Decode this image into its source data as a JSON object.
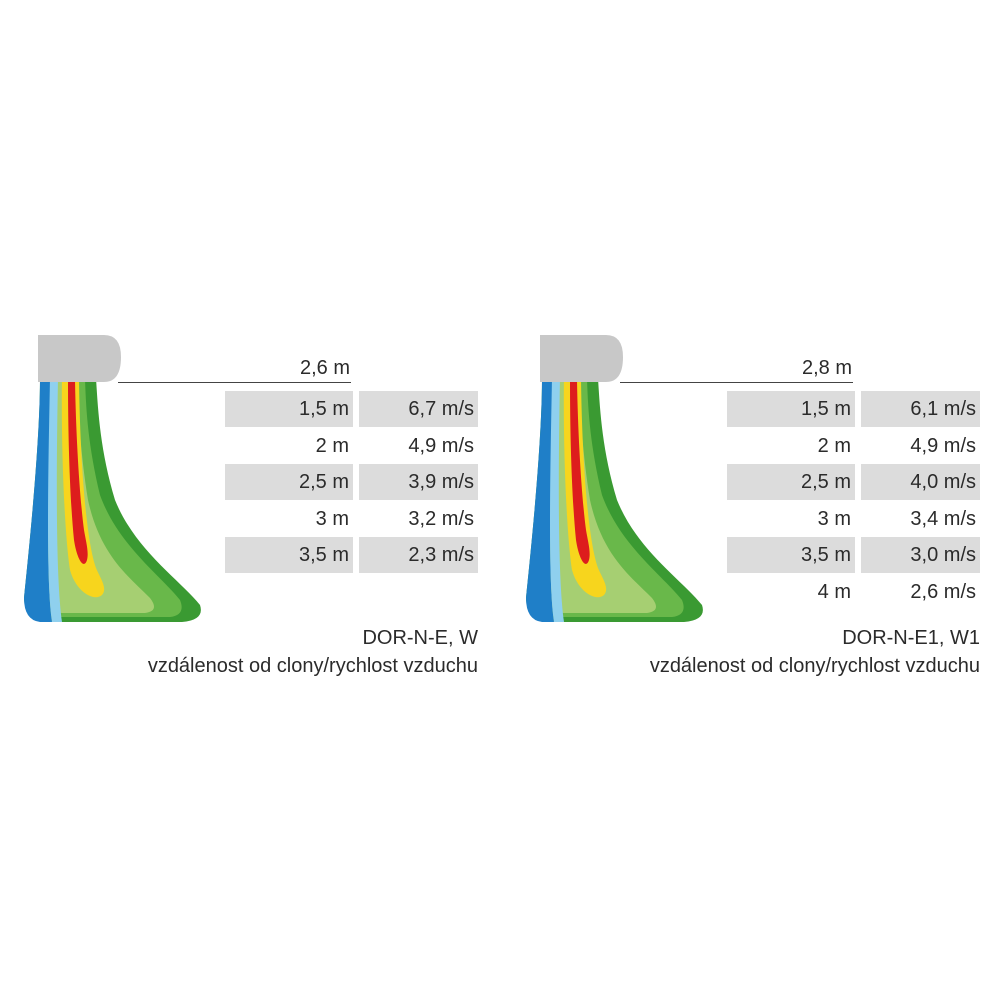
{
  "panels": [
    {
      "model": "DOR-N-E, W",
      "description": "vzdálenost od clony/rychlost vzduchu",
      "height_label": "2,6 m",
      "rows": [
        {
          "distance": "1,5 m",
          "speed": "6,7 m/s"
        },
        {
          "distance": "2 m",
          "speed": "4,9 m/s"
        },
        {
          "distance": "2,5 m",
          "speed": "3,9 m/s"
        },
        {
          "distance": "3 m",
          "speed": "3,2 m/s"
        },
        {
          "distance": "3,5 m",
          "speed": "2,3 m/s"
        }
      ]
    },
    {
      "model": "DOR-N-E1, W1",
      "description": "vzdálenost od clony/rychlost vzduchu",
      "height_label": "2,8 m",
      "rows": [
        {
          "distance": "1,5 m",
          "speed": "6,1 m/s"
        },
        {
          "distance": "2 m",
          "speed": "4,9 m/s"
        },
        {
          "distance": "2,5 m",
          "speed": "4,0 m/s"
        },
        {
          "distance": "3 m",
          "speed": "3,4 m/s"
        },
        {
          "distance": "3,5 m",
          "speed": "3,0 m/s"
        },
        {
          "distance": "4 m",
          "speed": "2,6 m/s"
        }
      ]
    }
  ],
  "colors": {
    "unit_body": "#c8c8c8",
    "zone_blue": "#1f7fc8",
    "zone_light_blue": "#8fd0ee",
    "zone_dark_green": "#3a9a32",
    "zone_green": "#69b84a",
    "zone_light_green": "#a6cf72",
    "zone_yellow": "#f7d51d",
    "zone_red": "#dd1d1d",
    "row_shade": "#dcdcdc"
  }
}
